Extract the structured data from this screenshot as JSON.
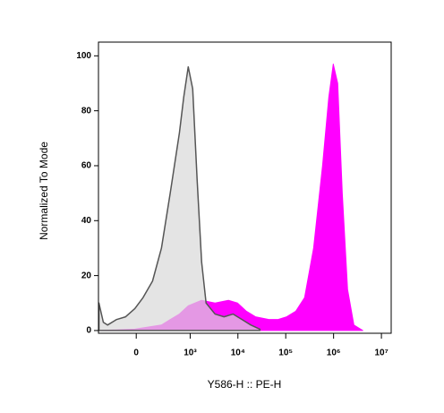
{
  "chart_data": {
    "type": "area",
    "xlabel": "Y586-H :: PE-H",
    "ylabel": "Normalized To Mode",
    "xscale": "arcsinh",
    "xlim": [
      -450,
      16000000
    ],
    "xticks": [
      0,
      {
        "value": 1000,
        "label": "10³"
      },
      {
        "value": 10000,
        "label": "10⁴"
      },
      {
        "value": 100000,
        "label": "10⁵"
      },
      {
        "value": 1000000,
        "label": "10⁶"
      },
      {
        "value": 10000000,
        "label": "10⁷"
      }
    ],
    "ylim": [
      -1,
      105
    ],
    "yticks": [
      0,
      20,
      40,
      60,
      80,
      100
    ],
    "series": [
      {
        "color": "#ff00ff",
        "x": [
          -410,
          -10,
          230,
          370,
          590,
          910,
          1740,
          3330,
          6360,
          9810,
          15090,
          23300,
          44300,
          68100,
          104800,
          161500,
          248000,
          382000,
          588000,
          795000,
          985000,
          1220000,
          1520000,
          1960000,
          2660000,
          4080000
        ],
        "values": [
          0,
          0.5,
          2,
          4,
          6,
          9,
          11,
          10,
          11,
          10,
          7,
          5,
          4,
          4,
          5,
          7,
          12,
          30,
          60,
          85,
          97,
          90,
          50,
          15,
          2,
          0
        ]
      },
      {
        "color": "#d9d9d9",
        "x": [
          -440,
          -350,
          -280,
          -165,
          -80,
          -10,
          50,
          130,
          230,
          370,
          590,
          730,
          910,
          1130,
          1400,
          1740,
          2160,
          3330,
          5130,
          7890,
          12160,
          18700,
          28800
        ],
        "values": [
          10,
          3,
          2,
          4,
          5,
          8,
          12,
          18,
          30,
          50,
          72,
          85,
          96,
          88,
          55,
          25,
          10,
          6,
          5,
          6,
          4,
          2,
          0.5
        ]
      }
    ]
  }
}
